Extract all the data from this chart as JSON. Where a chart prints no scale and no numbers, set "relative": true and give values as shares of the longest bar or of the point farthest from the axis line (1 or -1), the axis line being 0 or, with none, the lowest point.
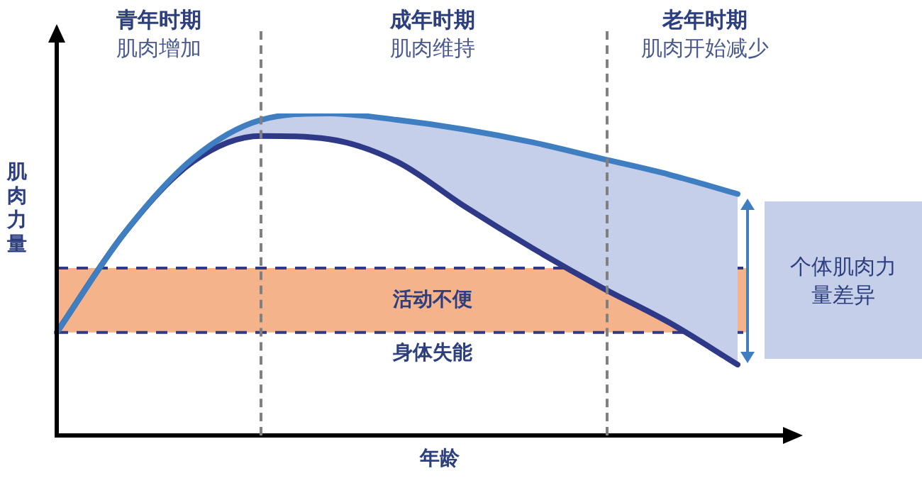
{
  "chart_data": {
    "type": "line",
    "relative": true,
    "xlabel": "年龄",
    "ylabel": "肌肉力量",
    "categories": [
      null,
      null,
      null,
      null,
      null,
      null,
      null,
      null,
      null,
      null,
      null
    ],
    "series": [
      {
        "color": "#3f7fc1",
        "values": [
          0.32,
          0.63,
          0.86,
          0.98,
          1,
          0.98,
          0.95,
          0.91,
          0.86,
          0.81,
          0.75
        ],
        "upper": [
          0.32,
          0.63,
          0.86,
          0.98,
          1,
          0.98,
          0.95,
          0.91,
          0.86,
          0.81,
          0.75
        ],
        "lower": [
          0.32,
          0.63,
          0.85,
          0.93,
          0.92,
          0.85,
          0.71,
          0.58,
          0.46,
          0.35,
          0.22
        ]
      },
      {
        "color": "#2e3a87",
        "values": [
          0.32,
          0.63,
          0.85,
          0.93,
          0.92,
          0.85,
          0.71,
          0.58,
          0.46,
          0.35,
          0.22
        ]
      }
    ],
    "bands": [
      {
        "axis": "y",
        "from": 0.32,
        "to": 0.52,
        "label": "活动不便",
        "color": "#f5b38c"
      }
    ],
    "ref_lines": [
      {
        "axis": "y",
        "value": 0.52,
        "color": "#2e3a87",
        "line_style": "dashed"
      },
      {
        "axis": "y",
        "value": 0.32,
        "label": "身体失能",
        "color": "#2e3a87",
        "line_style": "dashed"
      }
    ],
    "annotations": [
      "青年时期",
      "肌肉增加",
      "成年时期",
      "肌肉维持",
      "老年时期",
      "肌肉开始减少",
      "个体肌肉力量差异"
    ],
    "grid": false,
    "legend": false,
    "marker": "none",
    "line_style": "solid"
  }
}
